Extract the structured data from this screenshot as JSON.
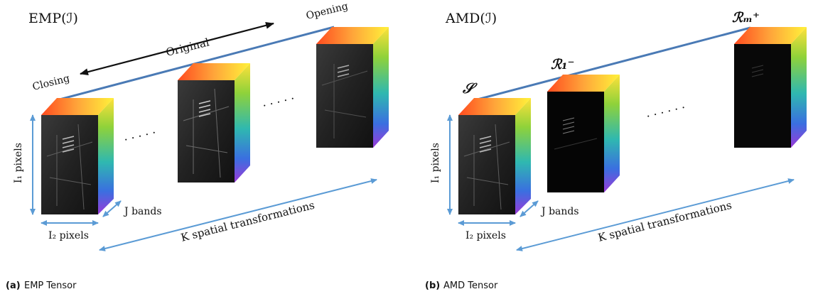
{
  "panel_a": {
    "title": "EMP(ℐ)",
    "arrow_labels": {
      "closing": "Closing",
      "original": "Original",
      "opening": "Opening"
    },
    "dims": {
      "rows": "I₁ pixels",
      "cols": "I₂ pixels",
      "bands": "J bands",
      "transforms": "K spatial transformations"
    },
    "ellipsis": ". . . . .",
    "caption_tag": "(a)",
    "caption_text": "EMP Tensor"
  },
  "panel_b": {
    "title": "AMD(ℐ)",
    "cube_labels": {
      "first": "𝒮",
      "second": "ℛ₁⁻",
      "last": "ℛₘ⁺"
    },
    "dims": {
      "rows": "I₁ pixels",
      "cols": "I₂ pixels",
      "bands": "J bands",
      "transforms": "K spatial transformations"
    },
    "ellipsis": ". . . . . .",
    "caption_tag": "(b)",
    "caption_text": "AMD Tensor"
  },
  "colors": {
    "line_blue": "#4a7ab5",
    "arrow_blue": "#5b9bd5",
    "black": "#111111"
  }
}
